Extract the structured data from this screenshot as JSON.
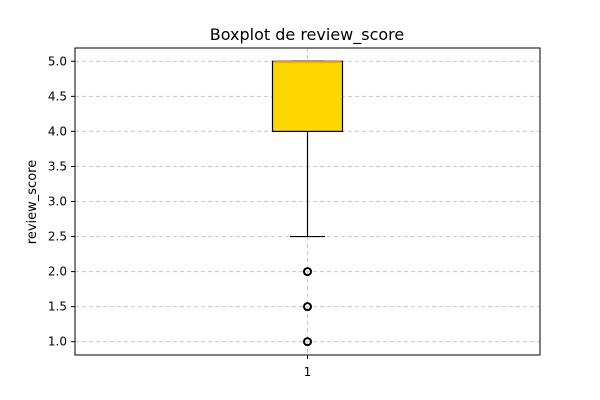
{
  "chart_data": {
    "type": "boxplot",
    "title": "Boxplot de review_score",
    "xlabel": "",
    "ylabel": "review_score",
    "categories": [
      "1"
    ],
    "y_ticks": [
      "1.0",
      "1.5",
      "2.0",
      "2.5",
      "3.0",
      "3.5",
      "4.0",
      "4.5",
      "5.0"
    ],
    "ylim": [
      0.81,
      5.19
    ],
    "grid": true,
    "boxes": [
      {
        "category": "1",
        "whisker_low": 2.5,
        "q1": 4.0,
        "median": 5.0,
        "q3": 5.0,
        "whisker_high": 5.0,
        "outliers": [
          2.0,
          1.5,
          1.0
        ]
      }
    ],
    "colors": {
      "box_fill": "#FFD700",
      "box_edge": "#000000",
      "median": "#FF8C00",
      "grid": "#c8c8c8"
    }
  }
}
